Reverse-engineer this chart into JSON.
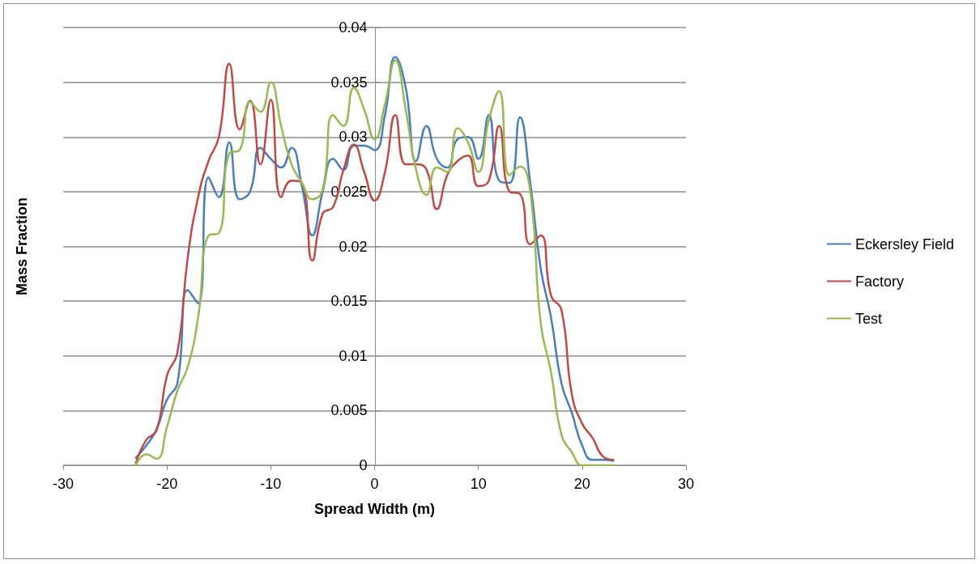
{
  "chart_data": {
    "type": "line",
    "xlabel": "Spread Width (m)",
    "ylabel": "Mass Fraction",
    "x": [
      -23,
      -22,
      -21,
      -20,
      -19,
      -18,
      -17,
      -16,
      -15,
      -14,
      -13,
      -12,
      -11,
      -10,
      -9,
      -8,
      -7,
      -6,
      -5,
      -4,
      -3,
      -2,
      -1,
      0,
      1,
      2,
      3,
      4,
      5,
      6,
      7,
      8,
      9,
      10,
      11,
      12,
      13,
      14,
      15,
      16,
      17,
      18,
      19,
      20,
      21,
      22,
      23
    ],
    "series": [
      {
        "name": "Eckersley Field",
        "color": "#4a7ebb",
        "values": [
          0.0007,
          0.0018,
          0.0033,
          0.006,
          0.0075,
          0.016,
          0.0148,
          0.0263,
          0.0245,
          0.0295,
          0.0243,
          0.025,
          0.029,
          0.028,
          0.0272,
          0.029,
          0.0255,
          0.021,
          0.025,
          0.028,
          0.027,
          0.0292,
          0.0292,
          0.0288,
          0.032,
          0.0373,
          0.0345,
          0.0278,
          0.031,
          0.028,
          0.0272,
          0.0298,
          0.03,
          0.028,
          0.032,
          0.026,
          0.0258,
          0.0318,
          0.0258,
          0.018,
          0.0135,
          0.0075,
          0.0048,
          0.0018,
          0.0005,
          0.0005,
          0.0004
        ]
      },
      {
        "name": "Factory",
        "color": "#be4b48",
        "values": [
          0.0002,
          0.0023,
          0.0032,
          0.0082,
          0.0103,
          0.019,
          0.0245,
          0.0278,
          0.03,
          0.0367,
          0.0307,
          0.0333,
          0.0275,
          0.0334,
          0.0245,
          0.026,
          0.0258,
          0.0187,
          0.023,
          0.0236,
          0.027,
          0.0293,
          0.0268,
          0.0242,
          0.0268,
          0.032,
          0.0275,
          0.0275,
          0.027,
          0.0234,
          0.0265,
          0.0278,
          0.0283,
          0.0255,
          0.026,
          0.031,
          0.025,
          0.0248,
          0.0202,
          0.021,
          0.0155,
          0.0142,
          0.0065,
          0.0038,
          0.0025,
          0.0008,
          0.0005
        ]
      },
      {
        "name": "Test",
        "color": "#98b954",
        "values": [
          0,
          0.001,
          0.0006,
          0.0035,
          0.0068,
          0.009,
          0.0135,
          0.021,
          0.0212,
          0.0285,
          0.0288,
          0.0332,
          0.0323,
          0.035,
          0.031,
          0.0275,
          0.0258,
          0.0243,
          0.0252,
          0.032,
          0.031,
          0.0345,
          0.0325,
          0.0298,
          0.033,
          0.037,
          0.0325,
          0.027,
          0.0247,
          0.0272,
          0.0268,
          0.0308,
          0.0295,
          0.0268,
          0.0315,
          0.0342,
          0.0265,
          0.0273,
          0.025,
          0.013,
          0.0085,
          0.0028,
          0.0012,
          0,
          0,
          0,
          0
        ]
      }
    ],
    "xlim": [
      -30,
      30
    ],
    "xticks": [
      -30,
      -20,
      -10,
      0,
      10,
      20,
      30
    ],
    "ylim": [
      0,
      0.04
    ],
    "yticks": [
      0,
      0.005,
      0.01,
      0.015,
      0.02,
      0.025,
      0.03,
      0.035,
      0.04
    ],
    "grid": "y",
    "legend": "right",
    "marker": "none",
    "line_style": "solid"
  }
}
